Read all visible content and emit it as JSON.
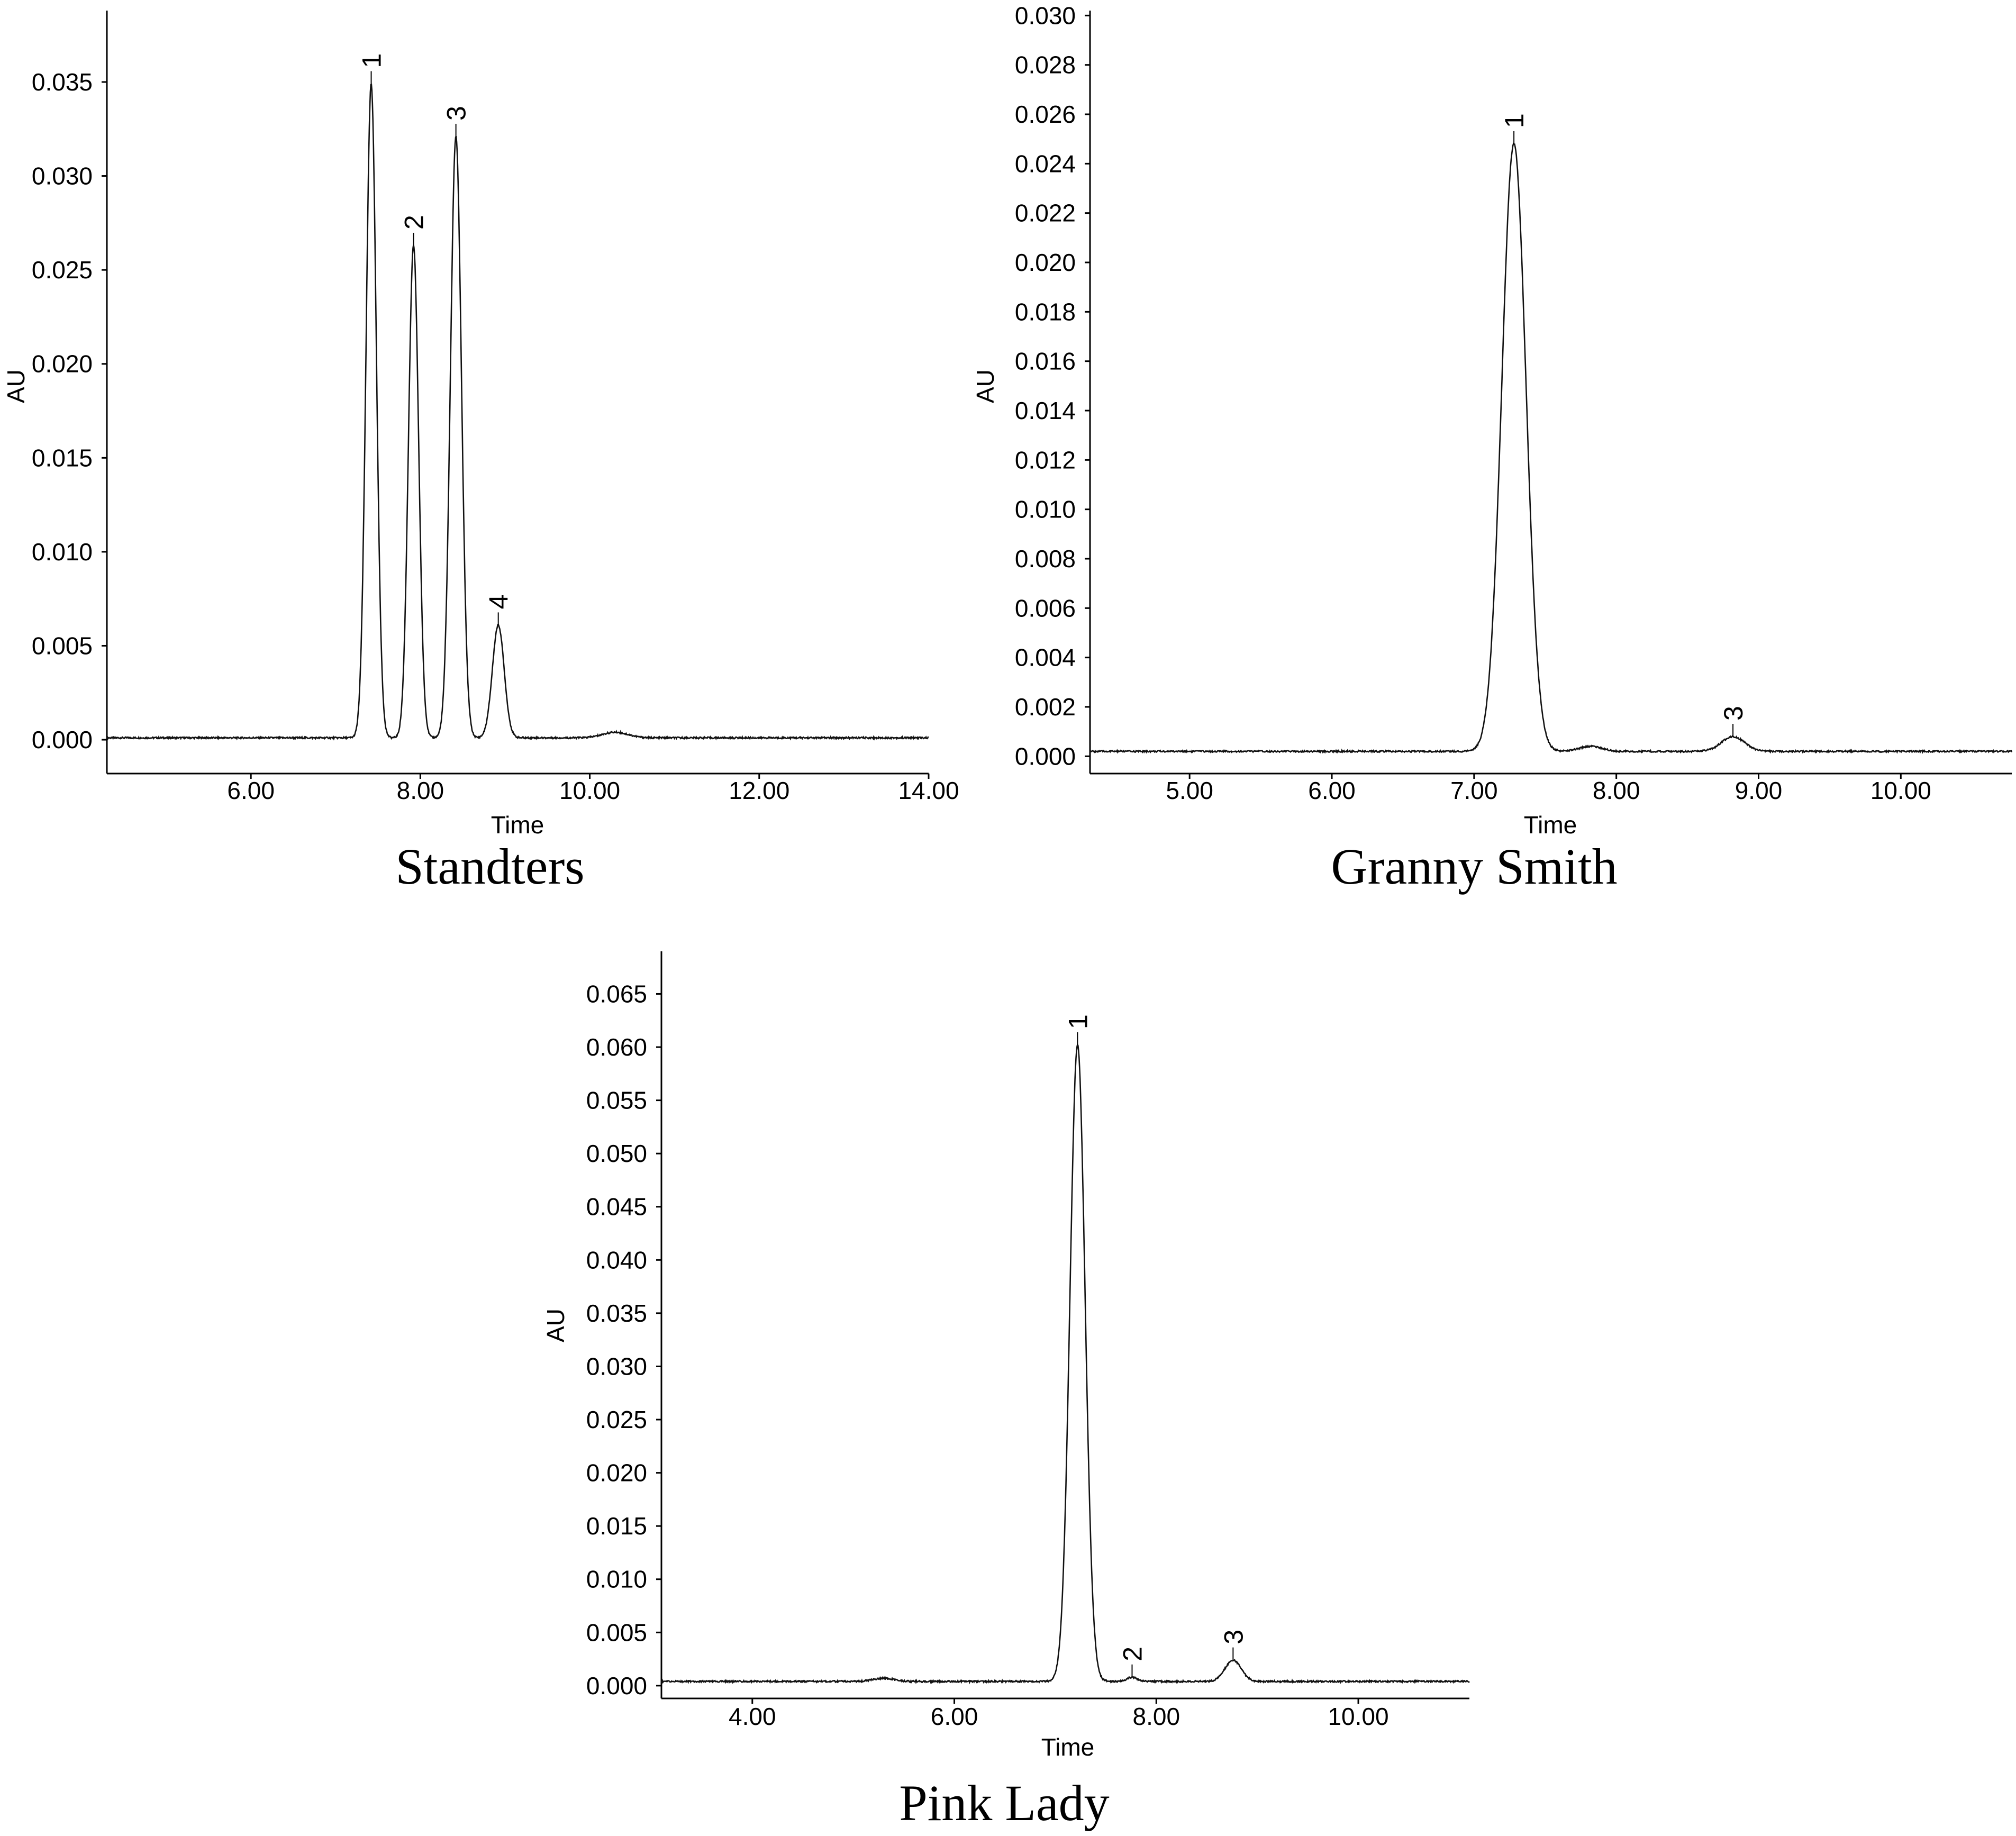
{
  "chart_data": [
    {
      "type": "line",
      "caption": "Standters",
      "xlabel": "Time",
      "ylabel": "AU",
      "xlim": [
        4.3,
        14.0
      ],
      "ylim": [
        -0.0018,
        0.0388
      ],
      "xticks": [
        6.0,
        8.0,
        10.0,
        12.0,
        14.0
      ],
      "xtick_labels": [
        "6.00",
        "8.00",
        "10.00",
        "12.00",
        "14.00"
      ],
      "yticks": [
        0.0,
        0.005,
        0.01,
        0.015,
        0.02,
        0.025,
        0.03,
        0.035
      ],
      "ytick_labels": [
        "0.000",
        "0.005",
        "0.010",
        "0.015",
        "0.020",
        "0.025",
        "0.030",
        "0.035"
      ],
      "baseline": 0.0001,
      "peaks": [
        {
          "label": "1",
          "x": 7.42,
          "y": 0.0349,
          "width": 0.06
        },
        {
          "label": "2",
          "x": 7.92,
          "y": 0.0263,
          "width": 0.06
        },
        {
          "label": "3",
          "x": 8.42,
          "y": 0.0321,
          "width": 0.065
        },
        {
          "label": "4",
          "x": 8.92,
          "y": 0.0061,
          "width": 0.07
        }
      ],
      "minor_bumps": [
        {
          "x": 10.3,
          "y": 0.0003,
          "width": 0.15
        }
      ]
    },
    {
      "type": "line",
      "caption": "Granny Smith",
      "xlabel": "Time",
      "ylabel": "AU",
      "xlim": [
        4.3,
        10.78
      ],
      "ylim": [
        -0.0007,
        0.0302
      ],
      "xticks": [
        5.0,
        6.0,
        7.0,
        8.0,
        9.0,
        10.0
      ],
      "xtick_labels": [
        "5.00",
        "6.00",
        "7.00",
        "8.00",
        "9.00",
        "10.00"
      ],
      "yticks": [
        0.0,
        0.002,
        0.004,
        0.006,
        0.008,
        0.01,
        0.012,
        0.014,
        0.016,
        0.018,
        0.02,
        0.022,
        0.024,
        0.026,
        0.028,
        0.03
      ],
      "ytick_labels": [
        "0.000",
        "0.002",
        "0.004",
        "0.006",
        "0.008",
        "0.010",
        "0.012",
        "0.014",
        "0.016",
        "0.018",
        "0.020",
        "0.022",
        "0.024",
        "0.026",
        "0.028",
        "0.030"
      ],
      "baseline": 0.0002,
      "peaks": [
        {
          "label": "1",
          "x": 7.28,
          "y": 0.0248,
          "width": 0.085
        },
        {
          "label": "3",
          "x": 8.82,
          "y": 0.0008,
          "width": 0.08
        }
      ],
      "minor_bumps": [
        {
          "x": 7.82,
          "y": 0.0002,
          "width": 0.08
        }
      ]
    },
    {
      "type": "line",
      "caption": "Pink Lady",
      "xlabel": "Time",
      "ylabel": "AU",
      "xlim": [
        3.1,
        11.1
      ],
      "ylim": [
        -0.0012,
        0.069
      ],
      "xticks": [
        4.0,
        6.0,
        8.0,
        10.0
      ],
      "xtick_labels": [
        "4.00",
        "6.00",
        "8.00",
        "10.00"
      ],
      "yticks": [
        0.0,
        0.005,
        0.01,
        0.015,
        0.02,
        0.025,
        0.03,
        0.035,
        0.04,
        0.045,
        0.05,
        0.055,
        0.06,
        0.065
      ],
      "ytick_labels": [
        "0.000",
        "0.005",
        "0.010",
        "0.015",
        "0.020",
        "0.025",
        "0.030",
        "0.035",
        "0.040",
        "0.045",
        "0.050",
        "0.055",
        "0.060",
        "0.065"
      ],
      "baseline": 0.0004,
      "peaks": [
        {
          "label": "1",
          "x": 7.22,
          "y": 0.0602,
          "width": 0.075
        },
        {
          "label": "2",
          "x": 7.76,
          "y": 0.0008,
          "width": 0.05
        },
        {
          "label": "3",
          "x": 8.76,
          "y": 0.0024,
          "width": 0.08
        }
      ],
      "minor_bumps": [
        {
          "x": 5.3,
          "y": 0.0003,
          "width": 0.1
        }
      ]
    }
  ]
}
